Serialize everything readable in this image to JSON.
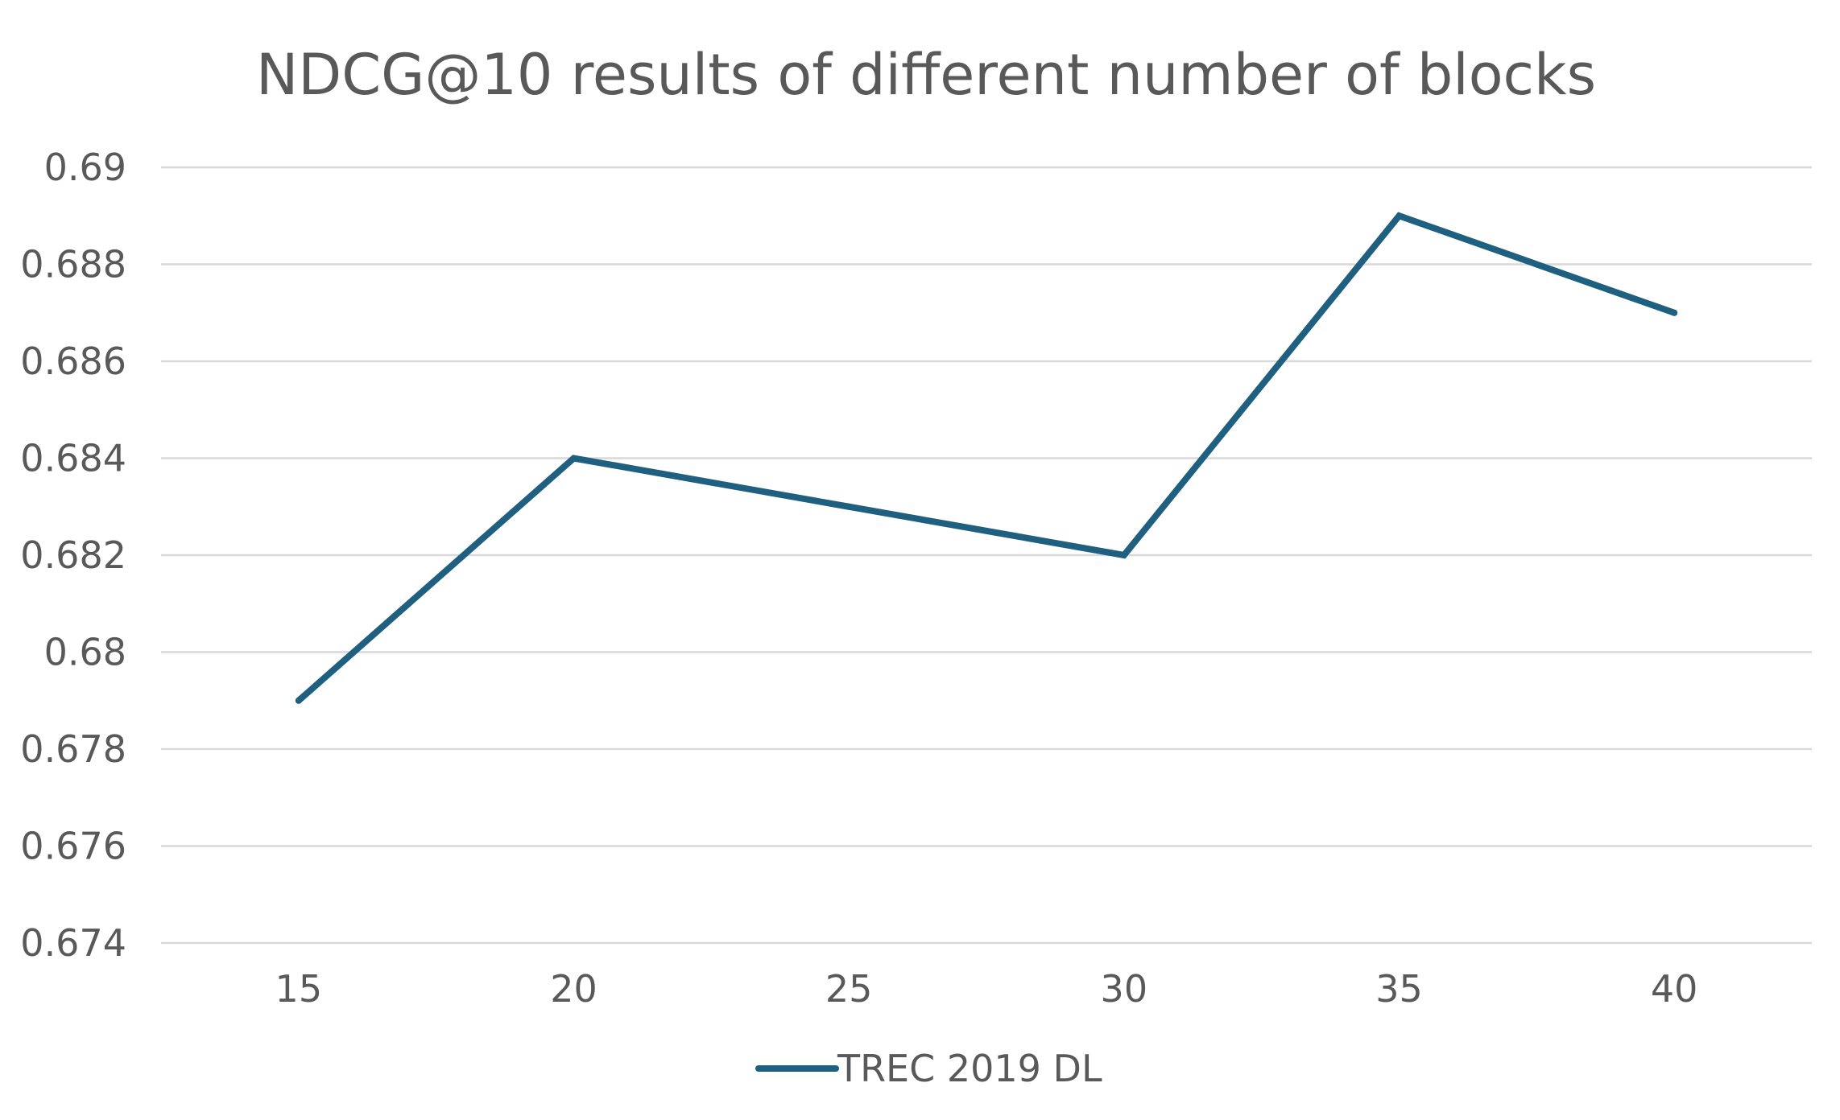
{
  "chart_data": {
    "type": "line",
    "title": "NDCG@10 results of different number of blocks",
    "xlabel": "",
    "ylabel": "",
    "categories": [
      "15",
      "20",
      "25",
      "30",
      "35",
      "40"
    ],
    "series": [
      {
        "name": "TREC 2019 DL",
        "values": [
          0.679,
          0.684,
          0.683,
          0.682,
          0.689,
          0.687
        ],
        "color": "#1f5f80"
      }
    ],
    "ylim": [
      0.674,
      0.69
    ],
    "yticks": [
      "0.674",
      "0.676",
      "0.678",
      "0.68",
      "0.682",
      "0.684",
      "0.686",
      "0.688",
      "0.69"
    ],
    "grid": true,
    "legend_position": "bottom",
    "colors": {
      "text": "#595959",
      "grid": "#d9d9d9",
      "line": "#1f5f80"
    }
  }
}
